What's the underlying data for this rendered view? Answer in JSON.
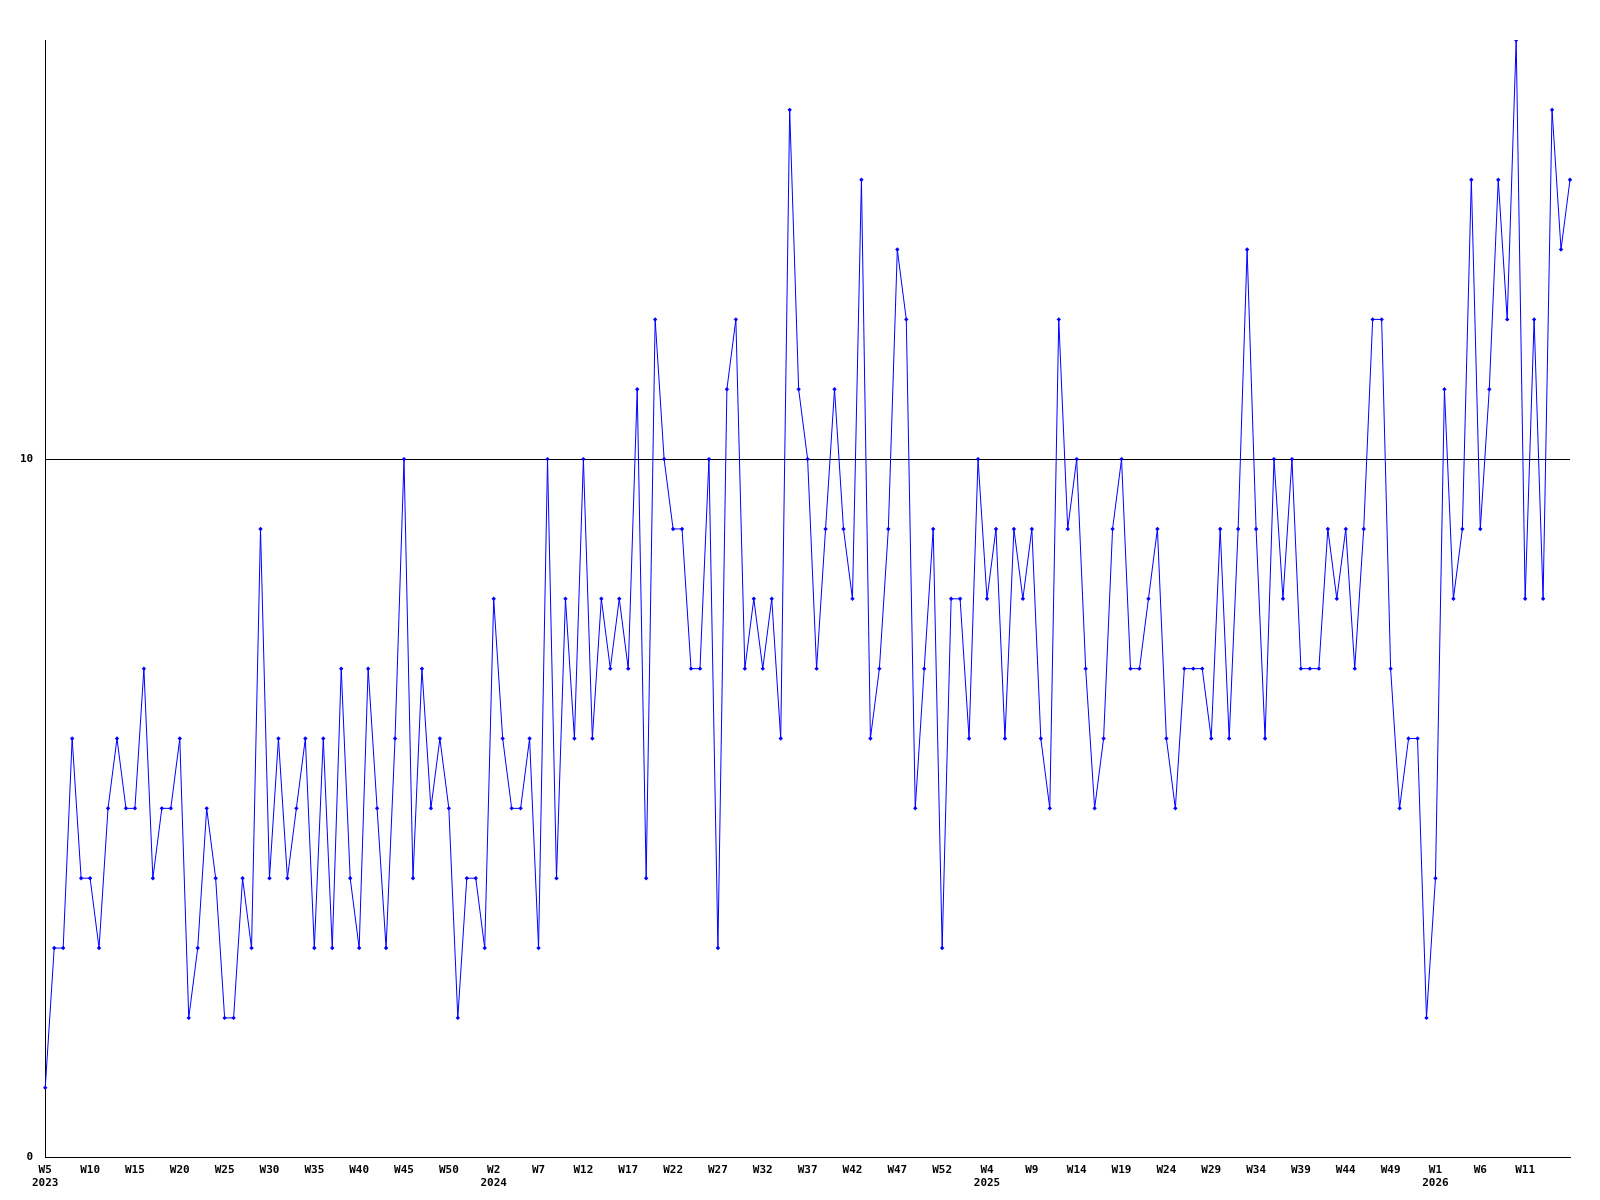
{
  "chart_data": {
    "type": "line",
    "categories": [
      "W5\n2023",
      null,
      null,
      null,
      null,
      "W10",
      null,
      null,
      null,
      null,
      "W15",
      null,
      null,
      null,
      null,
      "W20",
      null,
      null,
      null,
      null,
      "W25",
      null,
      null,
      null,
      null,
      "W30",
      null,
      null,
      null,
      null,
      "W35",
      null,
      null,
      null,
      null,
      "W40",
      null,
      null,
      null,
      null,
      "W45",
      null,
      null,
      null,
      null,
      "W50",
      null,
      null,
      null,
      null,
      "W2\n2024",
      null,
      null,
      null,
      null,
      "W7",
      null,
      null,
      null,
      null,
      "W12",
      null,
      null,
      null,
      null,
      "W17",
      null,
      null,
      null,
      null,
      "W22",
      null,
      null,
      null,
      null,
      "W27",
      null,
      null,
      null,
      null,
      "W32",
      null,
      null,
      null,
      null,
      "W37",
      null,
      null,
      null,
      null,
      "W42",
      null,
      null,
      null,
      null,
      "W47",
      null,
      null,
      null,
      null,
      "W52",
      null,
      null,
      null,
      null,
      "W4\n2025",
      null,
      null,
      null,
      null,
      "W9",
      null,
      null,
      null,
      null,
      "W14",
      null,
      null,
      null,
      null,
      "W19",
      null,
      null,
      null,
      null,
      "W24",
      null,
      null,
      null,
      null,
      "W29",
      null,
      null,
      null,
      null,
      "W34",
      null,
      null,
      null,
      null,
      "W39",
      null,
      null,
      null,
      null,
      "W44",
      null,
      null,
      null,
      null,
      "W49",
      null,
      null,
      null,
      null,
      "W1\n2026",
      null,
      null,
      null,
      null,
      "W6",
      null,
      null,
      null,
      null,
      "W11",
      null,
      null,
      null,
      null,
      null
    ],
    "series": [
      {
        "color": "#0000ff",
        "values": [
          1,
          3,
          3,
          6,
          4,
          4,
          3,
          5,
          6,
          5,
          5,
          7,
          4,
          5,
          5,
          6,
          2,
          3,
          5,
          4,
          2,
          2,
          4,
          3,
          9,
          4,
          6,
          4,
          5,
          6,
          3,
          6,
          3,
          7,
          4,
          3,
          7,
          5,
          3,
          6,
          10,
          4,
          7,
          5,
          6,
          5,
          2,
          4,
          4,
          3,
          8,
          6,
          5,
          5,
          6,
          3,
          10,
          4,
          8,
          6,
          10,
          6,
          8,
          7,
          8,
          7,
          11,
          4,
          12,
          10,
          9,
          9,
          7,
          7,
          10,
          3,
          11,
          12,
          7,
          8,
          7,
          8,
          6,
          15,
          11,
          10,
          7,
          9,
          11,
          9,
          8,
          14,
          6,
          7,
          9,
          13,
          12,
          5,
          7,
          9,
          3,
          8,
          8,
          6,
          10,
          8,
          9,
          6,
          9,
          8,
          9,
          6,
          5,
          12,
          9,
          10,
          7,
          5,
          6,
          9,
          10,
          7,
          7,
          8,
          9,
          6,
          5,
          7,
          7,
          7,
          6,
          9,
          6,
          9,
          13,
          9,
          6,
          10,
          8,
          10,
          7,
          7,
          7,
          9,
          8,
          9,
          7,
          9,
          12,
          12,
          7,
          5,
          6,
          6,
          2,
          4,
          11,
          8,
          9,
          14,
          9,
          11,
          14,
          12,
          16,
          8,
          12,
          8,
          15,
          13,
          14
        ]
      }
    ],
    "ylim": [
      0,
      16
    ],
    "yticks": [
      0,
      10
    ],
    "grid": "y",
    "legend": false,
    "marker": "diamond",
    "line_style": "solid"
  }
}
